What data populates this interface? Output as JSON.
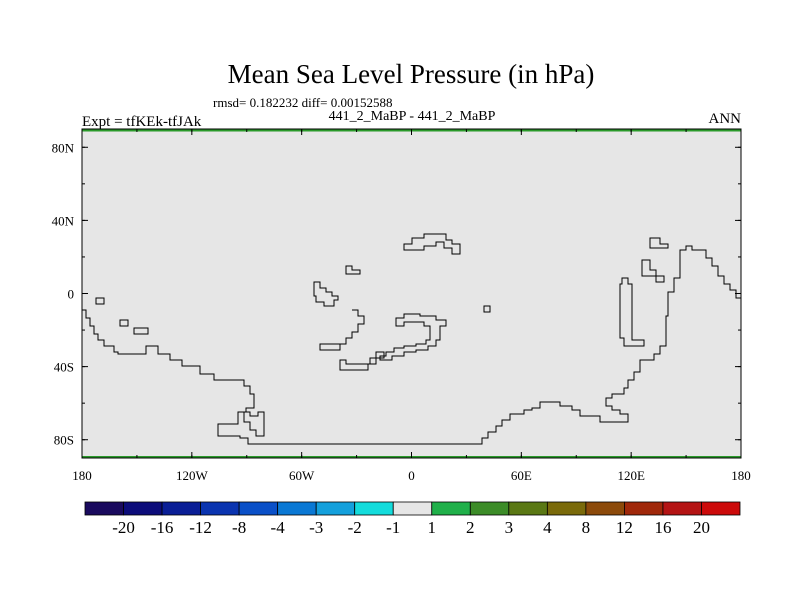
{
  "chart_data": {
    "type": "heatmap",
    "title": "Mean Sea Level Pressure (in hPa)",
    "stats": "rmsd= 0.182232 diff= 0.00152588",
    "subtitle": "441_2_MaBP - 441_2_MaBP",
    "left_label": "Expt = tfKEk-tfJAk",
    "right_label": "ANN",
    "x_ticks": [
      "180",
      "120W",
      "60W",
      "0",
      "60E",
      "120E",
      "180"
    ],
    "y_ticks": [
      "80N",
      "40N",
      "0",
      "40S",
      "80S"
    ],
    "xlim": [
      -180,
      180
    ],
    "ylim": [
      -90,
      90
    ],
    "field_value": "-1 to 1",
    "field_color": "#e6e6e6",
    "coastline_color": "#000000",
    "colorbar": {
      "labels": [
        "-20",
        "-16",
        "-12",
        "-8",
        "-4",
        "-3",
        "-2",
        "-1",
        "1",
        "2",
        "3",
        "4",
        "8",
        "12",
        "16",
        "20"
      ],
      "colors": [
        "#1a0a5e",
        "#0c0c7a",
        "#0a1e96",
        "#0a34b0",
        "#0a50c8",
        "#0a78d4",
        "#14a0dc",
        "#14dcdc",
        "#e6e6e6",
        "#20b04a",
        "#3c8c28",
        "#5a7814",
        "#7a6a0a",
        "#8c4a0a",
        "#a0280a",
        "#b41414",
        "#cc0a0a"
      ]
    }
  }
}
